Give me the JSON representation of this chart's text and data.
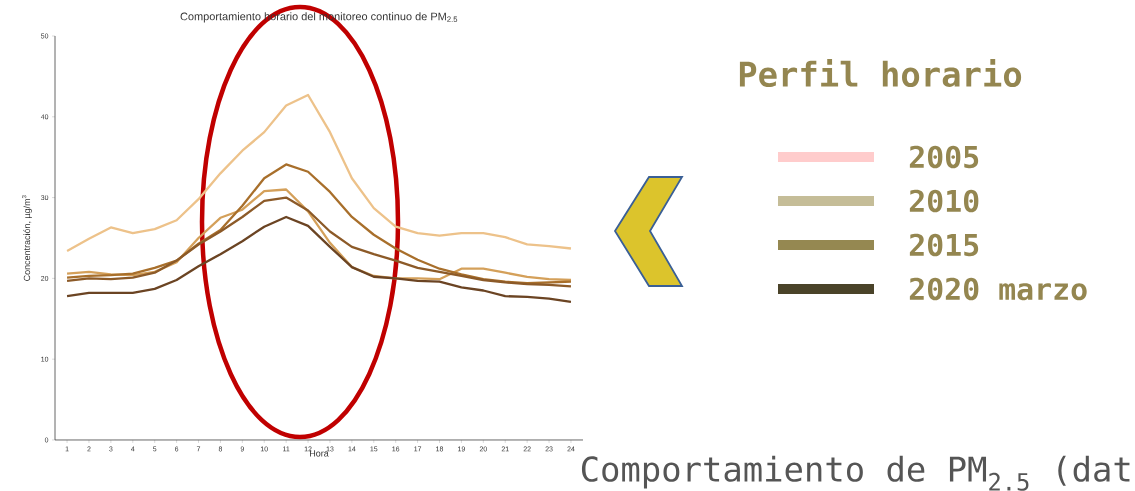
{
  "chart_data": {
    "type": "line",
    "title": "Comportamiento horario del monitoreo continuo de PM$_{2.5}$",
    "xlabel": "Hora",
    "ylabel": "Concentración, µg/m$^{3}$",
    "x": [
      1,
      2,
      3,
      4,
      5,
      6,
      7,
      8,
      9,
      10,
      11,
      12,
      13,
      14,
      15,
      16,
      17,
      18,
      19,
      20,
      21,
      22,
      23,
      24
    ],
    "xlim": [
      0.45,
      24.55
    ],
    "xticks": [
      1,
      2,
      3,
      4,
      5,
      6,
      7,
      8,
      9,
      10,
      11,
      12,
      13,
      14,
      15,
      16,
      17,
      18,
      19,
      20,
      21,
      22,
      23,
      24
    ],
    "ylim": [
      0,
      50
    ],
    "yticks": [
      0,
      10,
      20,
      30,
      40,
      50
    ],
    "marker": "none",
    "line_style": "solid",
    "series": [
      {
        "color": "#edc28a",
        "values": [
          23.4,
          24.9,
          26.3,
          25.6,
          26.1,
          27.2,
          29.8,
          33.0,
          35.8,
          38.1,
          41.4,
          42.7,
          38.1,
          32.4,
          28.7,
          26.4,
          25.6,
          25.3,
          25.6,
          25.6,
          25.1,
          24.2,
          24.0,
          23.7
        ]
      },
      {
        "color": "#d4a05a",
        "values": [
          20.6,
          20.8,
          20.5,
          20.4,
          20.8,
          22.0,
          25.0,
          27.5,
          28.5,
          30.8,
          31.0,
          28.3,
          24.4,
          21.4,
          20.3,
          20.0,
          20.0,
          19.9,
          21.2,
          21.2,
          20.7,
          20.2,
          19.9,
          19.8
        ]
      },
      {
        "color": "#a86f2b",
        "values": [
          20.1,
          20.3,
          20.4,
          20.6,
          21.3,
          22.2,
          24.3,
          26.0,
          29.0,
          32.4,
          34.1,
          33.2,
          30.7,
          27.6,
          25.4,
          23.7,
          22.3,
          21.2,
          20.5,
          19.9,
          19.6,
          19.4,
          19.5,
          19.6
        ]
      },
      {
        "color": "#8c5a28",
        "values": [
          19.7,
          20.0,
          19.9,
          20.1,
          20.7,
          22.2,
          24.2,
          25.8,
          27.6,
          29.6,
          30.0,
          28.4,
          25.8,
          23.9,
          23.0,
          22.2,
          21.3,
          20.8,
          20.3,
          19.8,
          19.5,
          19.3,
          19.2,
          19.0
        ]
      },
      {
        "color": "#6b4423",
        "values": [
          17.8,
          18.2,
          18.2,
          18.2,
          18.7,
          19.8,
          21.5,
          23.0,
          24.6,
          26.4,
          27.6,
          26.5,
          23.9,
          21.4,
          20.2,
          20.0,
          19.7,
          19.6,
          18.9,
          18.5,
          17.8,
          17.7,
          17.5,
          17.1
        ]
      }
    ],
    "annotations": [
      "Perfil horario",
      "2005",
      "2010",
      "2015",
      "2020 marzo",
      "Comportamiento de PM$_{2.5}$ (dat"
    ]
  }
}
